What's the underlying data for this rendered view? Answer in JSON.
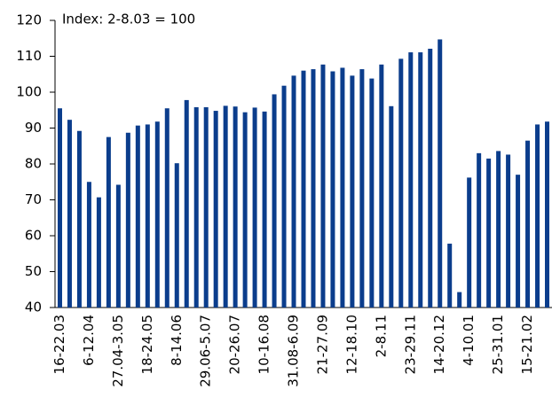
{
  "chart_data": {
    "type": "bar",
    "annotation": "Index: 2-8.03 = 100",
    "categories": [
      "16-22.03",
      null,
      null,
      "6-12.04",
      null,
      null,
      "27.04-3.05",
      null,
      null,
      "18-24.05",
      null,
      null,
      "8-14.06",
      null,
      null,
      "29.06-5.07",
      null,
      null,
      "20-26.07",
      null,
      null,
      "10-16.08",
      null,
      null,
      "31.08-6.09",
      null,
      null,
      "21-27.09",
      null,
      null,
      "12-18.10",
      null,
      null,
      "2-8.11",
      null,
      null,
      "23-29.11",
      null,
      null,
      "14-20.12",
      null,
      null,
      "4-10.01",
      null,
      null,
      "25-31.01",
      null,
      null,
      "15-21.02",
      null,
      null
    ],
    "values": [
      95.5,
      92.3,
      89.2,
      75,
      70.7,
      87.5,
      74.2,
      88.7,
      90.7,
      91,
      91.8,
      95.5,
      80.2,
      97.8,
      95.8,
      95.8,
      94.8,
      96.2,
      96,
      94.4,
      95.7,
      94.6,
      99.4,
      101.8,
      104.6,
      106,
      106.4,
      107.7,
      105.8,
      106.8,
      104.6,
      106.4,
      103.8,
      107.7,
      96.1,
      109.3,
      111.1,
      111.1,
      112.1,
      114.7,
      57.8,
      44.3,
      76.2,
      83,
      81.5,
      83.6,
      82.6,
      77,
      86.5,
      91,
      91.8
    ],
    "color": "#0b3d8c",
    "ylim": [
      40,
      120
    ],
    "yticks": [
      40,
      50,
      60,
      70,
      80,
      90,
      100,
      110,
      120
    ],
    "grid": false
  }
}
